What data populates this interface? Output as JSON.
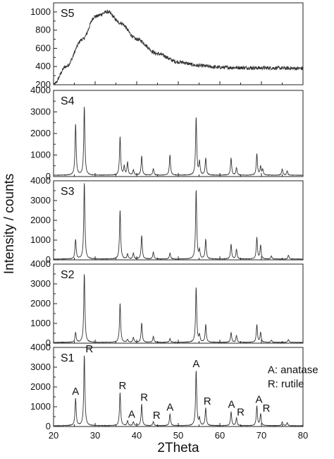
{
  "chart_data": {
    "type": "line",
    "xlabel": "2Theta",
    "ylabel": "Intensity / counts",
    "xlim": [
      20,
      80
    ],
    "xticks": [
      20,
      30,
      40,
      50,
      60,
      70,
      80
    ],
    "grid": false,
    "line_color": "#333333",
    "panels": [
      {
        "name": "S5",
        "ylim": [
          200,
          1100
        ],
        "yticks": [
          200,
          400,
          600,
          800,
          1000
        ],
        "profile": "amorphous",
        "key_points": [
          [
            20,
            200
          ],
          [
            23,
            400
          ],
          [
            27,
            700
          ],
          [
            30,
            950
          ],
          [
            33,
            1000
          ],
          [
            36,
            880
          ],
          [
            40,
            700
          ],
          [
            45,
            540
          ],
          [
            50,
            450
          ],
          [
            55,
            410
          ],
          [
            60,
            390
          ],
          [
            70,
            385
          ],
          [
            80,
            380
          ]
        ]
      },
      {
        "name": "S4",
        "ylim": [
          0,
          4000
        ],
        "yticks": [
          0,
          1000,
          2000,
          3000,
          4000
        ],
        "baseline": 60,
        "peaks": [
          [
            25.3,
            2400
          ],
          [
            27.4,
            3200
          ],
          [
            36.0,
            1800
          ],
          [
            37.0,
            400
          ],
          [
            37.8,
            600
          ],
          [
            39.2,
            250
          ],
          [
            41.2,
            900
          ],
          [
            44.0,
            300
          ],
          [
            48.0,
            950
          ],
          [
            54.3,
            2700
          ],
          [
            55.1,
            600
          ],
          [
            56.6,
            800
          ],
          [
            62.7,
            800
          ],
          [
            64.0,
            350
          ],
          [
            68.9,
            1000
          ],
          [
            69.8,
            400
          ],
          [
            70.3,
            250
          ],
          [
            75.0,
            300
          ],
          [
            76.2,
            200
          ]
        ]
      },
      {
        "name": "S3",
        "ylim": [
          0,
          4000
        ],
        "yticks": [
          0,
          1000,
          2000,
          3000,
          4000
        ],
        "baseline": 40,
        "peaks": [
          [
            25.3,
            1000
          ],
          [
            27.4,
            3900
          ],
          [
            36.0,
            2500
          ],
          [
            37.8,
            250
          ],
          [
            39.2,
            300
          ],
          [
            41.2,
            1200
          ],
          [
            44.0,
            350
          ],
          [
            48.0,
            300
          ],
          [
            54.3,
            3500
          ],
          [
            55.1,
            400
          ],
          [
            56.6,
            1000
          ],
          [
            62.7,
            750
          ],
          [
            64.0,
            500
          ],
          [
            68.9,
            1100
          ],
          [
            69.8,
            700
          ],
          [
            72.4,
            150
          ],
          [
            76.5,
            200
          ]
        ]
      },
      {
        "name": "S2",
        "ylim": [
          0,
          4000
        ],
        "yticks": [
          0,
          1000,
          2000,
          3000,
          4000
        ],
        "baseline": 40,
        "peaks": [
          [
            25.3,
            500
          ],
          [
            27.4,
            3500
          ],
          [
            36.0,
            2000
          ],
          [
            37.8,
            150
          ],
          [
            39.2,
            250
          ],
          [
            41.2,
            1000
          ],
          [
            44.0,
            300
          ],
          [
            48.0,
            200
          ],
          [
            54.3,
            2800
          ],
          [
            55.1,
            350
          ],
          [
            56.6,
            900
          ],
          [
            62.7,
            500
          ],
          [
            64.0,
            350
          ],
          [
            68.9,
            900
          ],
          [
            69.8,
            500
          ],
          [
            72.4,
            120
          ],
          [
            76.5,
            150
          ]
        ]
      },
      {
        "name": "S1",
        "ylim": [
          0,
          4000
        ],
        "yticks": [
          0,
          1000,
          2000,
          3000,
          4000
        ],
        "baseline": 40,
        "peaks": [
          [
            25.3,
            1400
          ],
          [
            27.4,
            3600
          ],
          [
            36.0,
            1700
          ],
          [
            37.8,
            250
          ],
          [
            39.2,
            200
          ],
          [
            41.2,
            1100
          ],
          [
            44.0,
            200
          ],
          [
            48.0,
            600
          ],
          [
            54.3,
            2800
          ],
          [
            55.1,
            350
          ],
          [
            56.6,
            900
          ],
          [
            62.7,
            700
          ],
          [
            64.0,
            400
          ],
          [
            68.9,
            1000
          ],
          [
            69.8,
            600
          ],
          [
            75.0,
            200
          ],
          [
            76.2,
            150
          ]
        ],
        "annotations": [
          {
            "text": "A",
            "x": 25.3,
            "y": 1600
          },
          {
            "text": "R",
            "x": 28.6,
            "y": 3750
          },
          {
            "text": "R",
            "x": 36.6,
            "y": 1900
          },
          {
            "text": "A",
            "x": 38.8,
            "y": 450
          },
          {
            "text": "R",
            "x": 41.8,
            "y": 1300
          },
          {
            "text": "R",
            "x": 44.8,
            "y": 400
          },
          {
            "text": "A",
            "x": 48.0,
            "y": 800
          },
          {
            "text": "A",
            "x": 54.3,
            "y": 3000
          },
          {
            "text": "R",
            "x": 57.0,
            "y": 1100
          },
          {
            "text": "A",
            "x": 62.8,
            "y": 950
          },
          {
            "text": "R",
            "x": 65.0,
            "y": 550
          },
          {
            "text": "A",
            "x": 69.4,
            "y": 1200
          },
          {
            "text": "R",
            "x": 71.2,
            "y": 750
          }
        ]
      }
    ],
    "legend": {
      "position": "right of S1 panel",
      "entries": [
        "A: anatase",
        "R: rutile"
      ]
    }
  }
}
